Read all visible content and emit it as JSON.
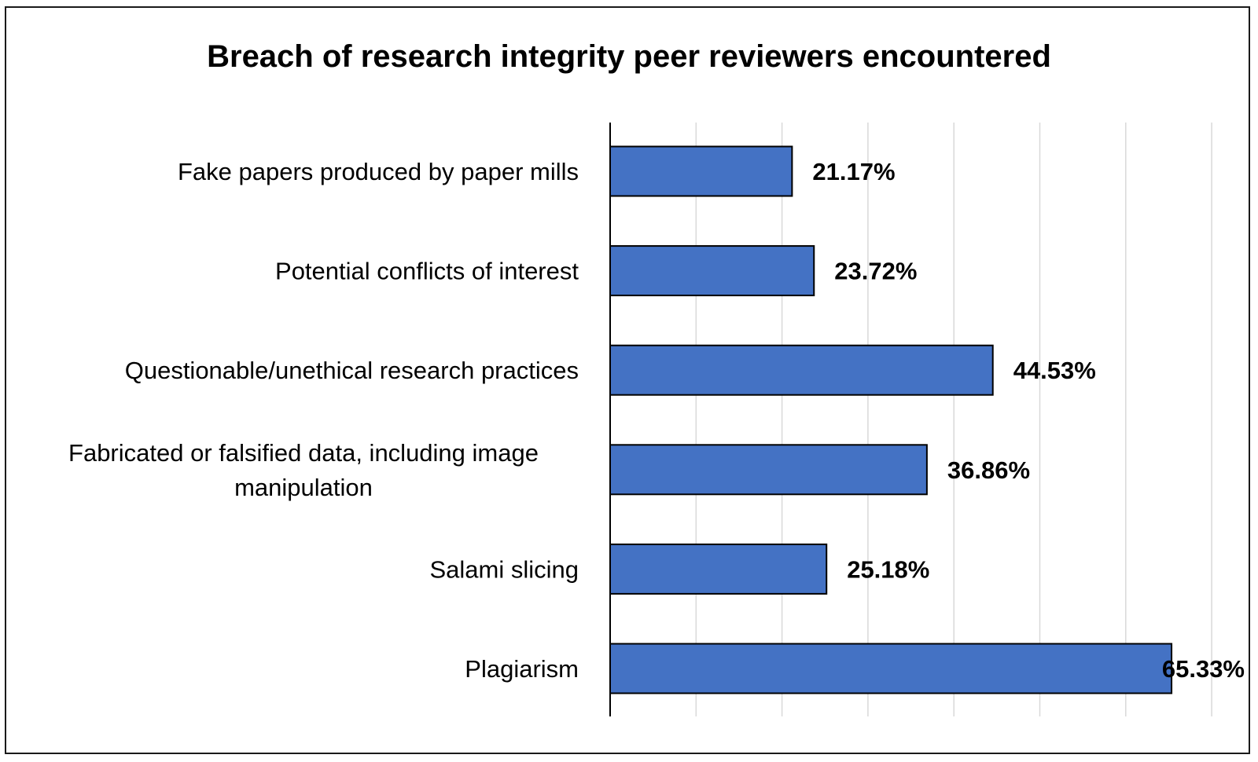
{
  "chart_data": {
    "type": "bar",
    "orientation": "horizontal",
    "title": "Breach of research integrity peer reviewers encountered",
    "xlabel": "",
    "ylabel": "",
    "categories": [
      "Fake papers produced by paper mills",
      "Potential conflicts of interest",
      "Questionable/unethical research practices",
      "Fabricated or falsified data, including image manipulation",
      "Salami slicing",
      "Plagiarism"
    ],
    "category_lines": [
      [
        "Fake papers produced by paper mills"
      ],
      [
        "Potential conflicts of interest"
      ],
      [
        "Questionable/unethical research practices"
      ],
      [
        "Fabricated or falsified data, including image",
        "manipulation"
      ],
      [
        "Salami slicing"
      ],
      [
        "Plagiarism"
      ]
    ],
    "values": [
      21.17,
      23.72,
      44.53,
      36.86,
      25.18,
      65.33
    ],
    "value_labels": [
      "21.17%",
      "23.72%",
      "44.53%",
      "36.86%",
      "25.18%",
      "65.33%"
    ],
    "xlim": [
      0,
      70
    ],
    "x_gridlines": [
      0,
      10,
      20,
      30,
      40,
      50,
      60,
      70
    ],
    "x_tick_labels_visible": false,
    "grid": true,
    "legend": "none",
    "bar_color": "#4472c4",
    "bar_edge_color": "#000000"
  }
}
